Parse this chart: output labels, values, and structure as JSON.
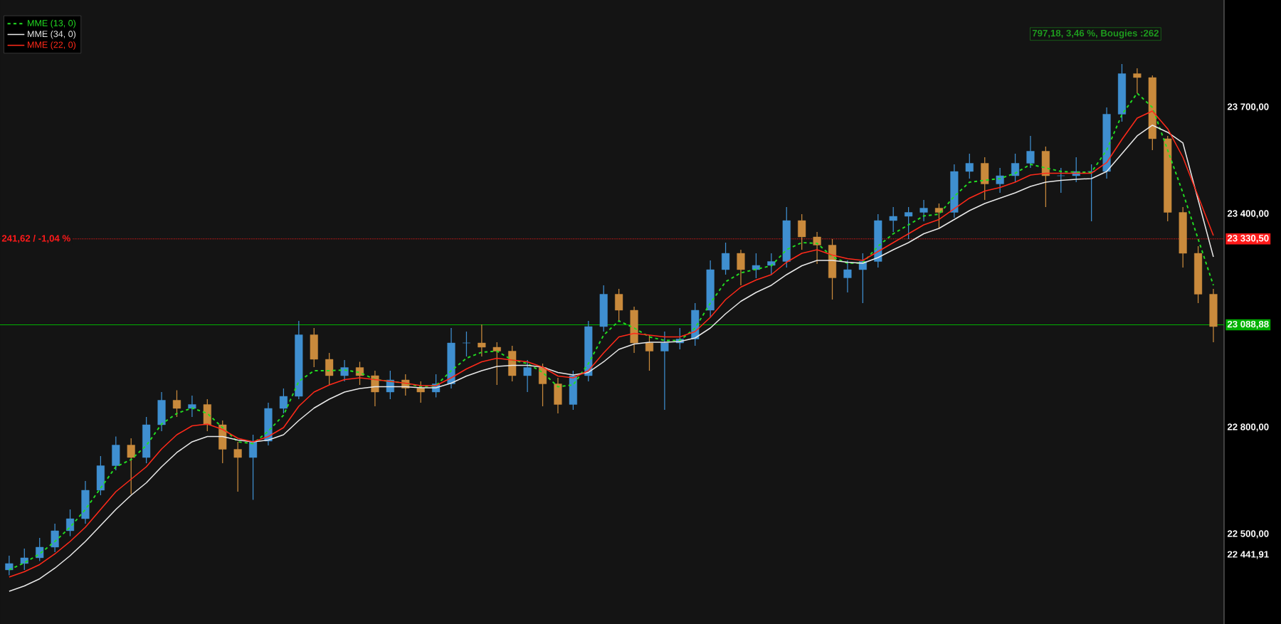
{
  "chart_data": {
    "type": "candlestick",
    "categories": [
      null,
      null,
      null,
      null,
      null,
      null,
      null,
      null,
      null,
      null,
      null,
      null,
      null,
      null,
      null,
      null,
      null,
      null,
      null,
      null,
      null,
      null,
      null,
      null,
      null,
      null,
      null,
      null,
      null,
      null,
      null,
      null,
      null,
      null,
      null,
      null,
      null,
      null,
      null,
      null,
      null,
      null,
      null,
      null,
      null,
      null,
      null,
      null,
      null,
      null,
      null,
      null,
      null,
      null,
      null,
      null,
      null,
      null,
      null,
      null,
      null,
      null,
      null,
      null,
      null,
      null,
      null,
      null,
      null,
      null,
      null,
      null,
      null,
      null,
      null,
      null,
      null,
      null,
      null,
      null
    ],
    "ohlc": [
      [
        22400,
        22440,
        22385,
        22418
      ],
      [
        22418,
        22460,
        22400,
        22434
      ],
      [
        22434,
        22490,
        22425,
        22464
      ],
      [
        22464,
        22530,
        22450,
        22510
      ],
      [
        22510,
        22570,
        22495,
        22544
      ],
      [
        22544,
        22650,
        22530,
        22624
      ],
      [
        22624,
        22720,
        22610,
        22693
      ],
      [
        22693,
        22775,
        22680,
        22751
      ],
      [
        22751,
        22770,
        22613,
        22716
      ],
      [
        22716,
        22830,
        22700,
        22808
      ],
      [
        22808,
        22900,
        22790,
        22877
      ],
      [
        22877,
        22905,
        22830,
        22854
      ],
      [
        22854,
        22890,
        22830,
        22865
      ],
      [
        22865,
        22880,
        22790,
        22808
      ],
      [
        22808,
        22820,
        22700,
        22739
      ],
      [
        22739,
        22760,
        22620,
        22716
      ],
      [
        22716,
        22780,
        22597,
        22762
      ],
      [
        22762,
        22870,
        22750,
        22854
      ],
      [
        22854,
        22910,
        22840,
        22888
      ],
      [
        22888,
        23100,
        22880,
        23061
      ],
      [
        23061,
        23080,
        22970,
        22992
      ],
      [
        22992,
        23010,
        22920,
        22946
      ],
      [
        22946,
        22990,
        22930,
        22969
      ],
      [
        22969,
        22985,
        22920,
        22946
      ],
      [
        22946,
        22960,
        22860,
        22900
      ],
      [
        22900,
        22960,
        22880,
        22934
      ],
      [
        22934,
        22950,
        22890,
        22911
      ],
      [
        22911,
        22930,
        22870,
        22900
      ],
      [
        22900,
        22950,
        22885,
        22923
      ],
      [
        22923,
        23080,
        22910,
        23038
      ],
      [
        23038,
        23070,
        23000,
        23038
      ],
      [
        23038,
        23090,
        23000,
        23026
      ],
      [
        23026,
        23040,
        22920,
        23015
      ],
      [
        23015,
        23030,
        22930,
        22946
      ],
      [
        22946,
        22990,
        22900,
        22969
      ],
      [
        22969,
        22980,
        22860,
        22923
      ],
      [
        22923,
        22940,
        22840,
        22865
      ],
      [
        22865,
        22960,
        22850,
        22946
      ],
      [
        22946,
        23100,
        22930,
        23084
      ],
      [
        23084,
        23200,
        23070,
        23175
      ],
      [
        23175,
        23190,
        23100,
        23130
      ],
      [
        23130,
        23140,
        23010,
        23038
      ],
      [
        23038,
        23060,
        22960,
        23015
      ],
      [
        23015,
        23070,
        22850,
        23038
      ],
      [
        23038,
        23080,
        23020,
        23049
      ],
      [
        23049,
        23150,
        23030,
        23130
      ],
      [
        23130,
        23270,
        23110,
        23244
      ],
      [
        23244,
        23320,
        23230,
        23290
      ],
      [
        23290,
        23300,
        23200,
        23244
      ],
      [
        23244,
        23290,
        23220,
        23256
      ],
      [
        23256,
        23290,
        23230,
        23267
      ],
      [
        23267,
        23420,
        23250,
        23382
      ],
      [
        23382,
        23400,
        23300,
        23336
      ],
      [
        23336,
        23350,
        23260,
        23313
      ],
      [
        23313,
        23330,
        23160,
        23221
      ],
      [
        23221,
        23270,
        23180,
        23244
      ],
      [
        23244,
        23290,
        23150,
        23267
      ],
      [
        23267,
        23400,
        23250,
        23382
      ],
      [
        23382,
        23420,
        23350,
        23394
      ],
      [
        23394,
        23420,
        23330,
        23405
      ],
      [
        23405,
        23440,
        23380,
        23417
      ],
      [
        23417,
        23430,
        23360,
        23405
      ],
      [
        23405,
        23540,
        23390,
        23520
      ],
      [
        23520,
        23570,
        23500,
        23543
      ],
      [
        23543,
        23560,
        23440,
        23485
      ],
      [
        23485,
        23530,
        23460,
        23508
      ],
      [
        23508,
        23570,
        23490,
        23543
      ],
      [
        23543,
        23620,
        23530,
        23577
      ],
      [
        23577,
        23590,
        23420,
        23508
      ],
      [
        23508,
        23530,
        23460,
        23508
      ],
      [
        23508,
        23560,
        23490,
        23520
      ],
      [
        23520,
        23540,
        23380,
        23520
      ],
      [
        23520,
        23700,
        23500,
        23681
      ],
      [
        23681,
        23822,
        23660,
        23795
      ],
      [
        23795,
        23810,
        23740,
        23784
      ],
      [
        23784,
        23790,
        23580,
        23612
      ],
      [
        23612,
        23620,
        23380,
        23405
      ],
      [
        23405,
        23420,
        23250,
        23290
      ],
      [
        23290,
        23310,
        23150,
        23175
      ],
      [
        23175,
        23190,
        23040,
        23084
      ]
    ],
    "series": [
      {
        "name": "MME (13, 0)",
        "type": "line",
        "color": "#22dd22",
        "line_style": "dashed",
        "values": [
          22400,
          22420,
          22445,
          22480,
          22520,
          22570,
          22630,
          22690,
          22710,
          22750,
          22810,
          22840,
          22855,
          22840,
          22800,
          22760,
          22755,
          22790,
          22835,
          22930,
          22960,
          22960,
          22962,
          22955,
          22935,
          22930,
          22925,
          22915,
          22918,
          22960,
          22995,
          23012,
          23015,
          22990,
          22980,
          22955,
          22915,
          22920,
          22980,
          23060,
          23100,
          23080,
          23055,
          23045,
          23045,
          23080,
          23150,
          23210,
          23235,
          23245,
          23255,
          23300,
          23320,
          23318,
          23280,
          23262,
          23263,
          23310,
          23345,
          23370,
          23395,
          23400,
          23450,
          23490,
          23495,
          23500,
          23515,
          23540,
          23530,
          23520,
          23518,
          23518,
          23580,
          23680,
          23740,
          23700,
          23580,
          23460,
          23330,
          23200
        ]
      },
      {
        "name": "MME (34, 0)",
        "type": "line",
        "color": "#e8e8e8",
        "line_style": "solid",
        "values": [
          22340,
          22355,
          22375,
          22405,
          22440,
          22480,
          22525,
          22570,
          22610,
          22645,
          22690,
          22730,
          22760,
          22775,
          22775,
          22765,
          22760,
          22765,
          22780,
          22820,
          22855,
          22880,
          22900,
          22910,
          22915,
          22915,
          22915,
          22912,
          22912,
          22925,
          22945,
          22960,
          22972,
          22975,
          22975,
          22970,
          22955,
          22948,
          22955,
          22985,
          23020,
          23035,
          23040,
          23040,
          23042,
          23052,
          23080,
          23120,
          23155,
          23180,
          23200,
          23230,
          23255,
          23270,
          23270,
          23265,
          23262,
          23278,
          23300,
          23320,
          23345,
          23360,
          23385,
          23410,
          23430,
          23445,
          23460,
          23478,
          23490,
          23495,
          23498,
          23500,
          23520,
          23570,
          23620,
          23650,
          23630,
          23600,
          23440,
          23280
        ]
      },
      {
        "name": "MME (22, 0)",
        "type": "line",
        "color": "#ff2a1a",
        "line_style": "solid",
        "values": [
          22380,
          22395,
          22415,
          22445,
          22480,
          22520,
          22570,
          22620,
          22655,
          22690,
          22740,
          22780,
          22805,
          22810,
          22795,
          22770,
          22760,
          22775,
          22800,
          22860,
          22900,
          22920,
          22935,
          22940,
          22935,
          22930,
          22925,
          22918,
          22918,
          22940,
          22965,
          22985,
          22995,
          22990,
          22985,
          22970,
          22945,
          22940,
          22960,
          23010,
          23055,
          23065,
          23060,
          23055,
          23055,
          23070,
          23110,
          23160,
          23195,
          23215,
          23230,
          23265,
          23290,
          23300,
          23285,
          23275,
          23270,
          23295,
          23320,
          23345,
          23370,
          23385,
          23415,
          23445,
          23465,
          23475,
          23490,
          23510,
          23515,
          23515,
          23515,
          23515,
          23545,
          23610,
          23670,
          23690,
          23640,
          23560,
          23450,
          23340
        ]
      }
    ],
    "ylim": [
      22248,
      24002
    ],
    "yticks": [
      {
        "value": 22441.91,
        "label": "22 441,91"
      },
      {
        "value": 22500,
        "label": "22 500,00"
      },
      {
        "value": 22800,
        "label": "22 800,00"
      },
      {
        "value": 23088.88,
        "label": "23 088,88"
      },
      {
        "value": 23330.5,
        "label": "23 330,50"
      },
      {
        "value": 23400,
        "label": "23 400,00"
      },
      {
        "value": 23700,
        "label": "23 700,00"
      }
    ],
    "tick_labels": "y",
    "legend": "top left",
    "ref_lines": [
      {
        "axis": "y",
        "value": 23330.5,
        "color": "#ff1a1a",
        "line_style": "dotted"
      },
      {
        "axis": "y",
        "value": 23088.88,
        "color": "#00b000",
        "line_style": "solid"
      }
    ],
    "annotations": [
      {
        "text": "241,62 / -1,04 %",
        "y": 23330.5
      },
      "797,18, 3,46 %, Bougies :262"
    ]
  }
}
